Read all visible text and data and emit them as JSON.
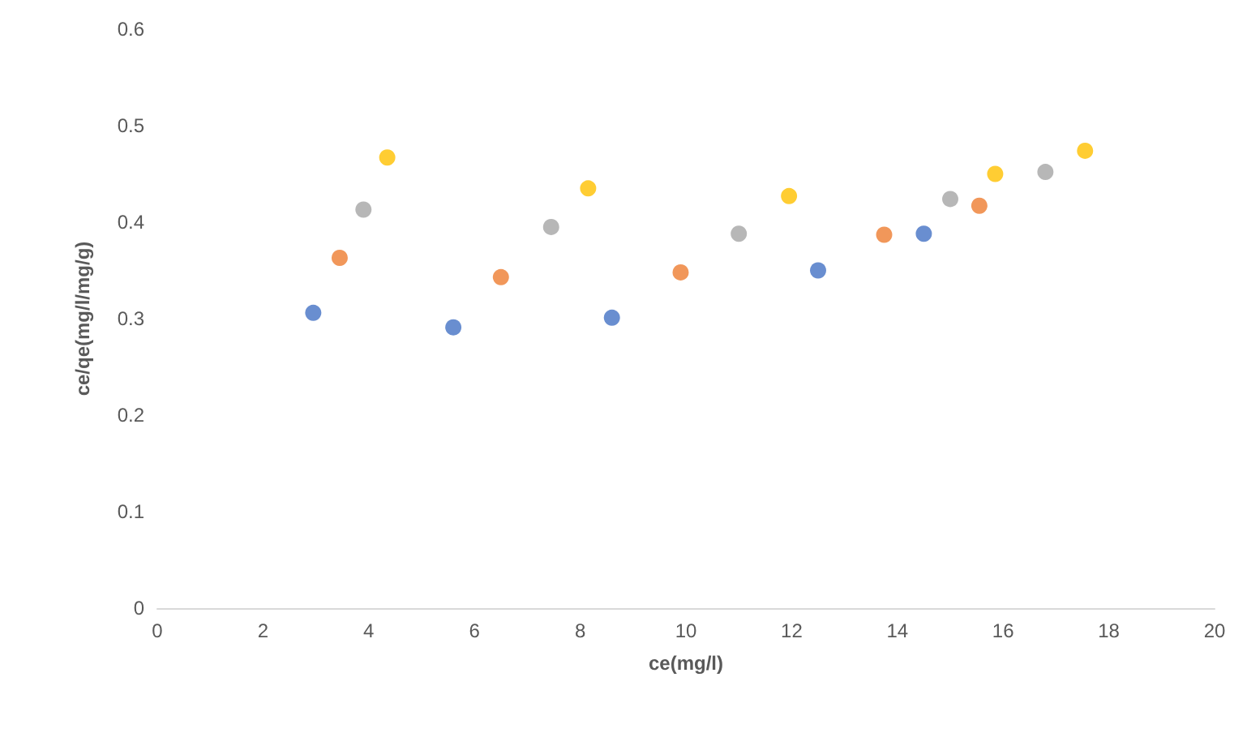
{
  "chart_data": {
    "type": "scatter",
    "xlabel": "ce(mg/l)",
    "ylabel": "ce/qe(mg/l/mg/g)",
    "xlim": [
      0,
      20
    ],
    "xticks": [
      0,
      2,
      4,
      6,
      8,
      10,
      12,
      14,
      16,
      18,
      20
    ],
    "ylim": [
      0,
      0.6
    ],
    "yticks": [
      0,
      0.1,
      0.2,
      0.3,
      0.4,
      0.5,
      0.6
    ],
    "grid": false,
    "marker": "circle",
    "series": [
      {
        "color": "#4472c4",
        "x": [
          2.95,
          5.6,
          8.6,
          12.5,
          14.5
        ],
        "values": [
          0.306,
          0.291,
          0.301,
          0.35,
          0.388
        ]
      },
      {
        "color": "#ed7d31",
        "x": [
          3.45,
          6.5,
          9.9,
          13.75,
          15.55
        ],
        "values": [
          0.363,
          0.343,
          0.348,
          0.387,
          0.417
        ]
      },
      {
        "color": "#a5a5a5",
        "x": [
          3.9,
          7.45,
          11,
          15,
          16.8
        ],
        "values": [
          0.413,
          0.395,
          0.388,
          0.424,
          0.452
        ]
      },
      {
        "color": "#ffc000",
        "x": [
          4.35,
          8.15,
          11.95,
          15.85,
          17.55
        ],
        "values": [
          0.467,
          0.435,
          0.427,
          0.45,
          0.474
        ]
      }
    ]
  }
}
